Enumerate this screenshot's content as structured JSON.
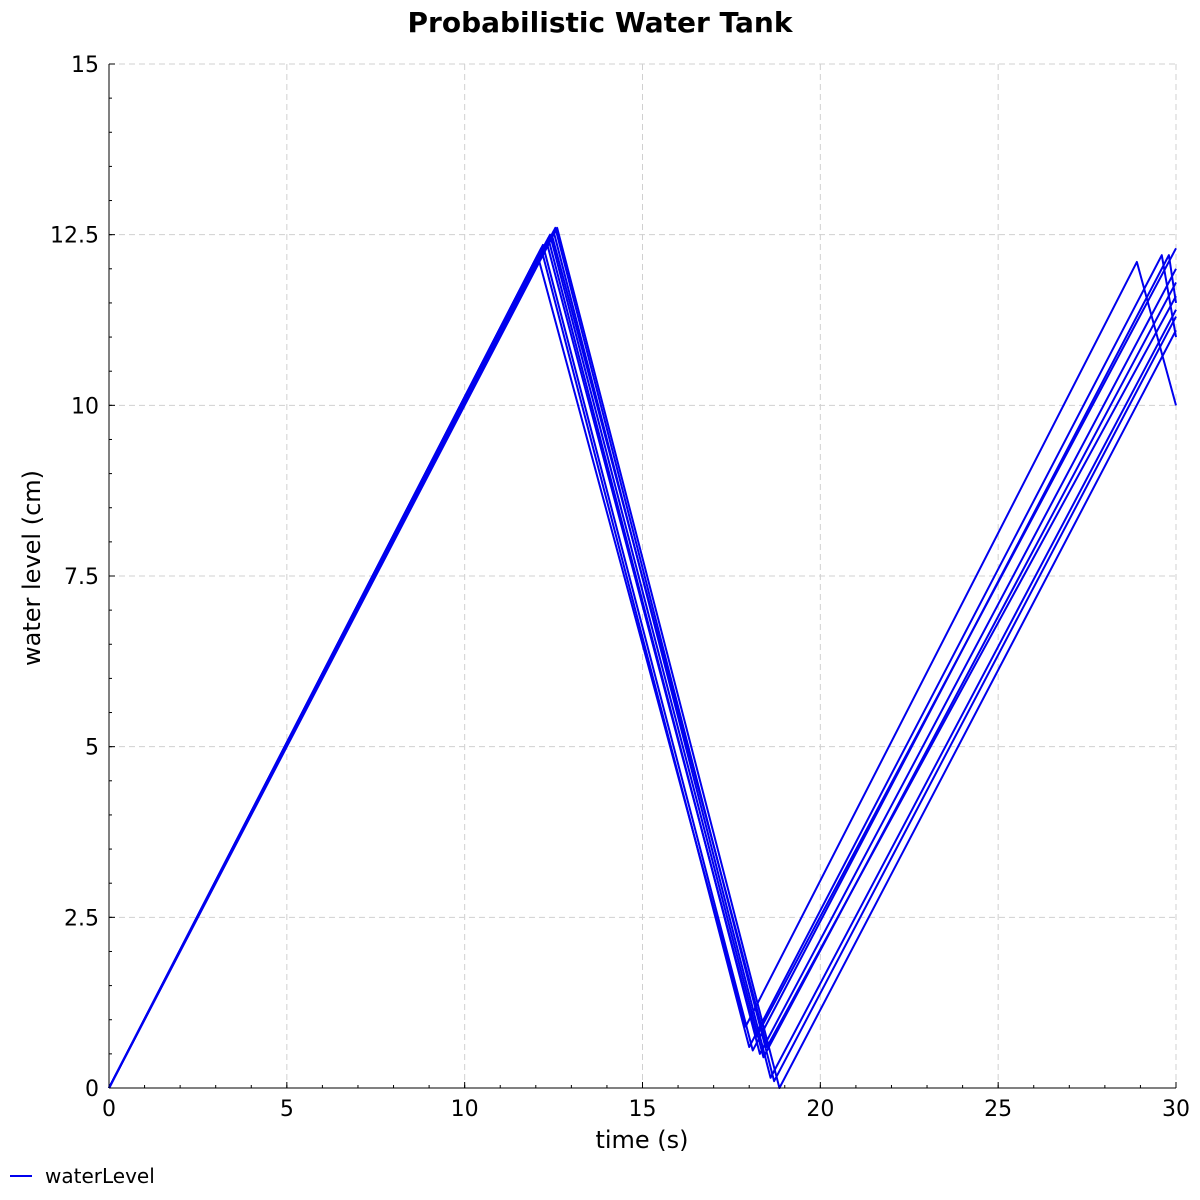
{
  "chart_data": {
    "type": "line",
    "title": "Probabilistic Water Tank",
    "xlabel": "time (s)",
    "ylabel": "water level (cm)",
    "xlim": [
      0,
      30
    ],
    "ylim": [
      0,
      15
    ],
    "x_ticks": [
      0,
      5,
      10,
      15,
      20,
      25,
      30
    ],
    "x_tick_labels": [
      "0",
      "5",
      "10",
      "15",
      "20",
      "25",
      "30"
    ],
    "y_ticks": [
      0,
      2.5,
      5,
      7.5,
      10,
      12.5,
      15
    ],
    "y_tick_labels": [
      "0",
      "2.5",
      "5",
      "7.5",
      "10",
      "12.5",
      "15"
    ],
    "grid": true,
    "legend": {
      "position": "bottom-left",
      "entries": [
        "waterLevel"
      ]
    },
    "series_color": "#0000ee",
    "series": [
      {
        "name": "waterLevel",
        "runs": [
          {
            "x": [
              0,
              12.05,
              17.9,
              28.9,
              30.0
            ],
            "y": [
              0,
              12.2,
              0.9,
              12.1,
              10.0
            ]
          },
          {
            "x": [
              0,
              12.15,
              18.0,
              29.6,
              30.0
            ],
            "y": [
              0,
              12.3,
              0.6,
              12.2,
              11.0
            ]
          },
          {
            "x": [
              0,
              12.2,
              18.1,
              29.8,
              30.0
            ],
            "y": [
              0,
              12.35,
              0.55,
              12.2,
              11.5
            ]
          },
          {
            "x": [
              0,
              12.3,
              18.2,
              30.0
            ],
            "y": [
              0,
              12.4,
              0.75,
              12.3
            ]
          },
          {
            "x": [
              0,
              12.35,
              18.3,
              30.0
            ],
            "y": [
              0,
              12.45,
              0.5,
              12.0
            ]
          },
          {
            "x": [
              0,
              12.4,
              18.4,
              30.0
            ],
            "y": [
              0,
              12.5,
              0.45,
              11.8
            ]
          },
          {
            "x": [
              0,
              12.45,
              18.5,
              30.0
            ],
            "y": [
              0,
              12.5,
              0.6,
              11.6
            ]
          },
          {
            "x": [
              0,
              12.5,
              18.6,
              30.0
            ],
            "y": [
              0,
              12.55,
              0.15,
              11.4
            ]
          },
          {
            "x": [
              0,
              12.55,
              18.7,
              30.0
            ],
            "y": [
              0,
              12.6,
              0.1,
              11.3
            ]
          },
          {
            "x": [
              0,
              12.6,
              18.85,
              30.0
            ],
            "y": [
              0,
              12.6,
              0.0,
              11.1
            ]
          }
        ]
      }
    ]
  }
}
